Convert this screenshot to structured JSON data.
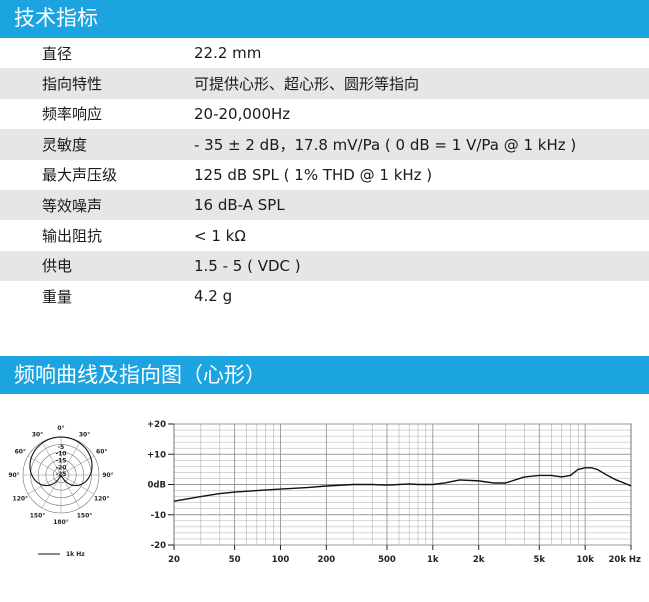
{
  "section1_title": "技术指标",
  "specs": [
    {
      "label": "直径",
      "value": "22.2 mm"
    },
    {
      "label": "指向特性",
      "value": "可提供心形、超心形、圆形等指向"
    },
    {
      "label": "频率响应",
      "value": "20-20,000Hz"
    },
    {
      "label": "灵敏度",
      "value": "- 35 ± 2 dB，17.8 mV/Pa ( 0 dB = 1 V/Pa @ 1 kHz )"
    },
    {
      "label": "最大声压级",
      "value": "125 dB SPL ( 1% THD @ 1 kHz )"
    },
    {
      "label": "等效噪声",
      "value": "16 dB-A SPL"
    },
    {
      "label": "输出阻抗",
      "value": "< 1 kΩ"
    },
    {
      "label": "供电",
      "value": "1.5 - 5 ( VDC )"
    },
    {
      "label": "重量",
      "value": "4.2 g"
    }
  ],
  "section2_title": "频响曲线及指向图（心形）",
  "polar": {
    "angle_labels": [
      "0°",
      "30°",
      "30°",
      "60°",
      "60°",
      "90°",
      "90°",
      "120°",
      "120°",
      "150°",
      "150°",
      "180°"
    ],
    "ring_labels": [
      "-5",
      "-10",
      "-15",
      "-20",
      "-25"
    ],
    "legend": "1k Hz"
  },
  "chart_data": {
    "type": "line",
    "x_scale": "log",
    "xlim": [
      20,
      20000
    ],
    "ylim": [
      -20,
      20
    ],
    "x_tick_labels": [
      "20",
      "50",
      "100",
      "200",
      "500",
      "1k",
      "2k",
      "5k",
      "10k",
      "20k Hz"
    ],
    "y_tick_labels": [
      "+20",
      "+10",
      "0dB",
      "-10",
      "-20"
    ],
    "grid": true,
    "series": [
      {
        "x": [
          20,
          30,
          40,
          50,
          70,
          100,
          150,
          200,
          300,
          400,
          500,
          600,
          700,
          800,
          1000,
          1200,
          1500,
          2000,
          2500,
          3000,
          4000,
          5000,
          6000,
          7000,
          8000,
          9000,
          10000,
          11000,
          12000,
          14000,
          16000,
          18000,
          20000
        ],
        "y": [
          -5.5,
          -4,
          -3,
          -2.5,
          -2,
          -1.5,
          -1,
          -0.5,
          0,
          0,
          -0.2,
          0,
          0.2,
          0,
          0,
          0.5,
          1.5,
          1.2,
          0.5,
          0.5,
          2.5,
          3,
          3,
          2.5,
          3,
          5,
          5.5,
          5.5,
          5,
          3,
          1.5,
          0.5,
          -0.5
        ]
      }
    ]
  }
}
